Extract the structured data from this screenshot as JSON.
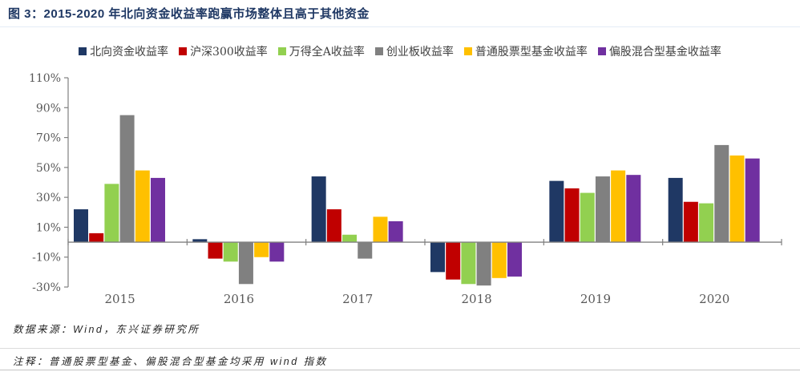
{
  "header": {
    "title": "图 3：2015-2020 年北向资金收益率跑赢市场整体且高于其他资金"
  },
  "footer": {
    "source": "数据来源：Wind，东兴证券研究所",
    "note": "注释：普通股票型基金、偏股混合型基金均采用 wind 指数"
  },
  "colors": {
    "title_blue": "#1f3864",
    "axis_gray": "#808080",
    "tick_label_gray": "#595959"
  },
  "chart_data": {
    "type": "bar",
    "title": "图 3：2015-2020 年北向资金收益率跑赢市场整体且高于其他资金",
    "categories": [
      "2015",
      "2016",
      "2017",
      "2018",
      "2019",
      "2020"
    ],
    "series": [
      {
        "name": "北向资金收益率",
        "color": "#1f3864",
        "values": [
          22,
          2,
          44,
          -20,
          41,
          43
        ]
      },
      {
        "name": "沪深300收益率",
        "color": "#c00000",
        "values": [
          6,
          -11,
          22,
          -25,
          36,
          27
        ]
      },
      {
        "name": "万得全A收益率",
        "color": "#92d050",
        "values": [
          39,
          -13,
          5,
          -28,
          33,
          26
        ]
      },
      {
        "name": "创业板收益率",
        "color": "#808080",
        "values": [
          85,
          -28,
          -11,
          -29,
          44,
          65
        ]
      },
      {
        "name": "普通股票型基金收益率",
        "color": "#ffc000",
        "values": [
          48,
          -10,
          17,
          -24,
          48,
          58
        ]
      },
      {
        "name": "偏股混合型基金收益率",
        "color": "#7030a0",
        "values": [
          43,
          -13,
          14,
          -23,
          45,
          56
        ]
      }
    ],
    "ylim": [
      -30,
      110
    ],
    "yticks": [
      {
        "value": 110,
        "label": "110%"
      },
      {
        "value": 90,
        "label": "90%"
      },
      {
        "value": 70,
        "label": "70%"
      },
      {
        "value": 50,
        "label": "50%"
      },
      {
        "value": 30,
        "label": "30%"
      },
      {
        "value": 10,
        "label": "10%"
      },
      {
        "value": -10,
        "label": "-10%"
      },
      {
        "value": -30,
        "label": "-30%"
      }
    ],
    "xlabel": "",
    "ylabel": "",
    "grid": false,
    "legend_position": "top"
  }
}
